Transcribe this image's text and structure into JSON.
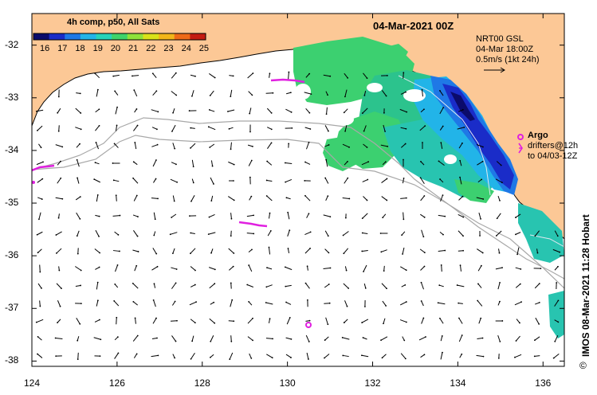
{
  "title_date": "04-Mar-2021 00Z",
  "colorbar": {
    "title": "4h comp, p50, All Sats",
    "ticks": [
      "16",
      "17",
      "18",
      "19",
      "20",
      "21",
      "22",
      "23",
      "24",
      "25"
    ],
    "colors": [
      "#0b0b6b",
      "#1a2cc8",
      "#1f78e6",
      "#22b4e8",
      "#26d3b9",
      "#3fd36a",
      "#8fe23a",
      "#d9e21a",
      "#f2b61a",
      "#ee6a18",
      "#c41c12"
    ]
  },
  "info": {
    "line1": "NRT00 GSL",
    "line2": "04-Mar 18:00Z",
    "line3": "0.5m/s (1kt 24h)"
  },
  "argo": {
    "label": "Argo",
    "drifters_line1": "drifters@12h",
    "drifters_line2": "to 04/03-12Z",
    "color": "#e020e0"
  },
  "credit": "IMOS 08-Mar-2021 11:28 Hobart",
  "copyright": "©",
  "axes": {
    "x_ticks": [
      "124",
      "126",
      "128",
      "130",
      "132",
      "134",
      "136"
    ],
    "y_ticks": [
      "-32",
      "-33",
      "-34",
      "-35",
      "-36",
      "-37",
      "-38"
    ],
    "xlim": [
      124,
      136.5
    ],
    "ylim": [
      -38.1,
      -31.4
    ]
  },
  "colors": {
    "land": "#fcc896",
    "sea": "#ffffff",
    "isobath": "#a8a8a8"
  }
}
